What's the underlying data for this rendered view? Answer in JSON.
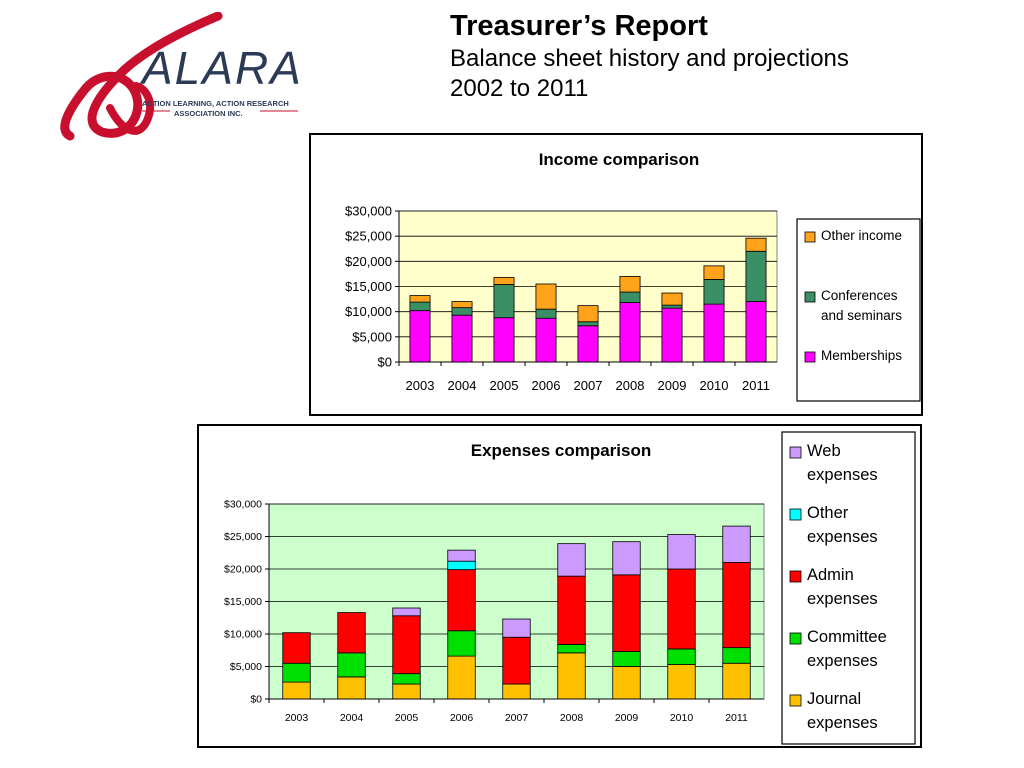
{
  "header": {
    "title": "Treasurer’s Report",
    "subtitle_line1": "Balance sheet history and projections",
    "subtitle_line2": "2002 to 2011"
  },
  "logo": {
    "text": "ALARA",
    "tagline_line1": "ACTION LEARNING, ACTION RESEARCH",
    "tagline_line2": "ASSOCIATION INC.",
    "colors": {
      "swirl": "#c8102e",
      "text": "#2b3a57"
    }
  },
  "chart_data": [
    {
      "type": "bar",
      "stacked": true,
      "title": "Income comparison",
      "categories": [
        "2003",
        "2004",
        "2005",
        "2006",
        "2007",
        "2008",
        "2009",
        "2010",
        "2011"
      ],
      "series": [
        {
          "name": "Memberships",
          "color": "#ff00ff",
          "values": [
            10200,
            9300,
            8800,
            8700,
            7200,
            11800,
            10700,
            11500,
            12000
          ]
        },
        {
          "name": "Conferences and seminars",
          "color": "#3a8f65",
          "values": [
            1700,
            1500,
            6600,
            1800,
            800,
            2100,
            600,
            4900,
            10000
          ]
        },
        {
          "name": "Other income",
          "color": "#ffa31a",
          "values": [
            1300,
            1200,
            1400,
            5000,
            3200,
            3100,
            2400,
            2700,
            2600
          ]
        }
      ],
      "legend_order": [
        "Other income",
        "Conferences and seminars",
        "Memberships"
      ],
      "y_ticks": [
        "$0",
        "$5,000",
        "$10,000",
        "$15,000",
        "$20,000",
        "$25,000",
        "$30,000"
      ],
      "ylim": [
        0,
        30000
      ],
      "plot_background": "#ffffcc",
      "grid": true,
      "legend_position": "right"
    },
    {
      "type": "bar",
      "stacked": true,
      "title": "Expenses comparison",
      "categories": [
        "2003",
        "2004",
        "2005",
        "2006",
        "2007",
        "2008",
        "2009",
        "2010",
        "2011"
      ],
      "series": [
        {
          "name": "Journal expenses",
          "color": "#ffc000",
          "values": [
            2600,
            3400,
            2300,
            6600,
            2300,
            7100,
            5000,
            5300,
            5500
          ]
        },
        {
          "name": "Committee expenses",
          "color": "#00e000",
          "values": [
            2900,
            3700,
            1600,
            3900,
            0,
            1300,
            2300,
            2400,
            2400
          ]
        },
        {
          "name": "Admin expenses",
          "color": "#ff0000",
          "values": [
            4700,
            6200,
            8900,
            9400,
            7200,
            10500,
            11800,
            12300,
            13100
          ]
        },
        {
          "name": "Other expenses",
          "color": "#00ffff",
          "values": [
            0,
            0,
            0,
            1300,
            0,
            0,
            0,
            0,
            0
          ]
        },
        {
          "name": "Web expenses",
          "color": "#cc99ff",
          "values": [
            0,
            0,
            1200,
            1700,
            2800,
            5000,
            5100,
            5300,
            5600
          ]
        }
      ],
      "legend_order": [
        "Web expenses",
        "Other expenses",
        "Admin expenses",
        "Committee expenses",
        "Journal expenses"
      ],
      "y_ticks": [
        "$0",
        "$5,000",
        "$10,000",
        "$15,000",
        "$20,000",
        "$25,000",
        "$30,000"
      ],
      "ylim": [
        0,
        30000
      ],
      "plot_background": "#ccffcc",
      "grid": true,
      "legend_position": "right"
    }
  ]
}
